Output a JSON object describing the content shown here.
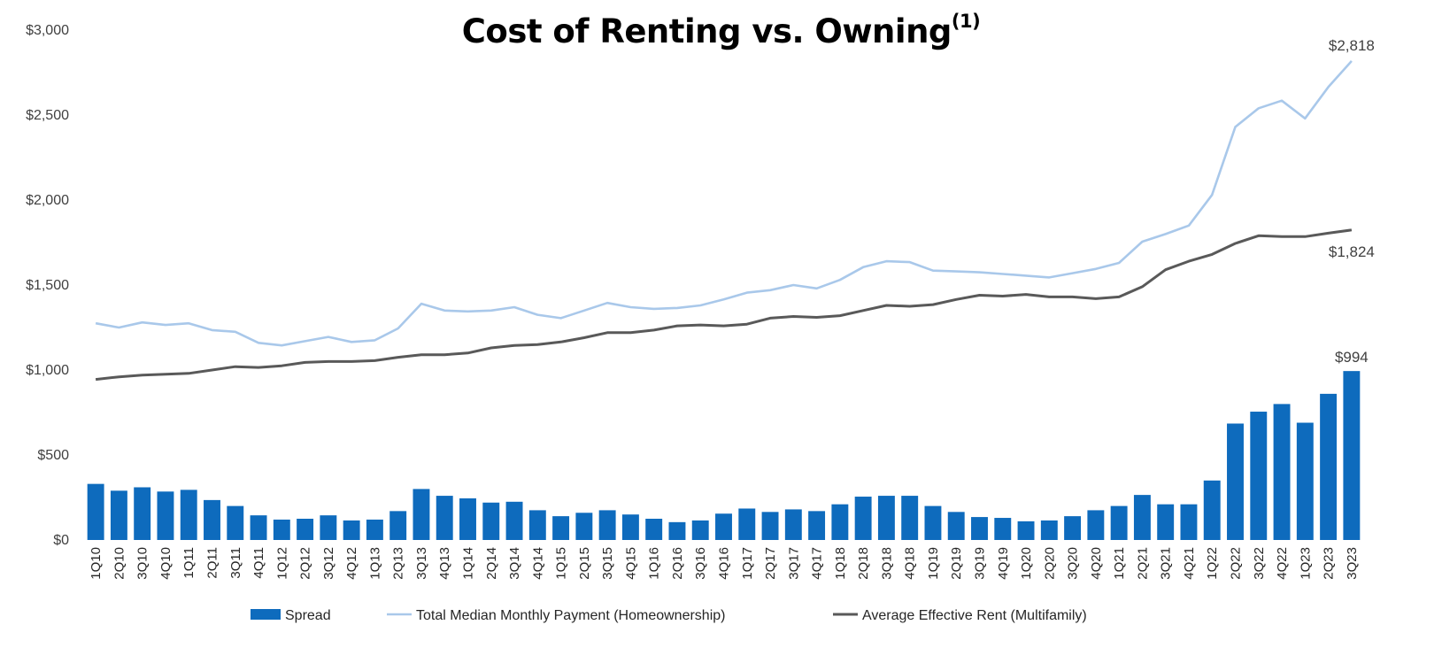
{
  "title": "Cost of Renting vs. Owning",
  "title_superscript": "(1)",
  "chart_data": {
    "type": "bar",
    "categories": [
      "1Q10",
      "2Q10",
      "3Q10",
      "4Q10",
      "1Q11",
      "2Q11",
      "3Q11",
      "4Q11",
      "1Q12",
      "2Q12",
      "3Q12",
      "4Q12",
      "1Q13",
      "2Q13",
      "3Q13",
      "4Q13",
      "1Q14",
      "2Q14",
      "3Q14",
      "4Q14",
      "1Q15",
      "2Q15",
      "3Q15",
      "4Q15",
      "1Q16",
      "2Q16",
      "3Q16",
      "4Q16",
      "1Q17",
      "2Q17",
      "3Q17",
      "4Q17",
      "1Q18",
      "2Q18",
      "3Q18",
      "4Q18",
      "1Q19",
      "2Q19",
      "3Q19",
      "4Q19",
      "1Q20",
      "2Q20",
      "3Q20",
      "4Q20",
      "1Q21",
      "2Q21",
      "3Q21",
      "4Q21",
      "1Q22",
      "2Q22",
      "3Q22",
      "4Q22",
      "1Q23",
      "2Q23",
      "3Q23"
    ],
    "series": [
      {
        "name": "Spread",
        "type": "bar",
        "color": "#0e6bbd",
        "values": [
          330,
          290,
          310,
          285,
          295,
          235,
          200,
          145,
          120,
          125,
          145,
          115,
          120,
          170,
          300,
          260,
          245,
          220,
          225,
          175,
          140,
          160,
          175,
          150,
          125,
          105,
          115,
          155,
          185,
          165,
          180,
          170,
          210,
          255,
          260,
          260,
          200,
          165,
          135,
          130,
          110,
          115,
          140,
          175,
          200,
          265,
          210,
          210,
          350,
          685,
          755,
          800,
          690,
          860,
          994
        ]
      },
      {
        "name": "Total Median Monthly Payment (Homeownership)",
        "type": "line",
        "color": "#a9c8ea",
        "values": [
          1275,
          1250,
          1280,
          1265,
          1275,
          1235,
          1225,
          1160,
          1145,
          1170,
          1195,
          1165,
          1175,
          1245,
          1390,
          1350,
          1345,
          1350,
          1370,
          1325,
          1305,
          1350,
          1395,
          1370,
          1360,
          1365,
          1380,
          1415,
          1455,
          1470,
          1500,
          1480,
          1530,
          1605,
          1640,
          1635,
          1585,
          1580,
          1575,
          1565,
          1555,
          1545,
          1570,
          1595,
          1630,
          1755,
          1800,
          1850,
          2030,
          2430,
          2540,
          2585,
          2480,
          2665,
          2818
        ]
      },
      {
        "name": "Average Effective Rent (Multifamily)",
        "type": "line",
        "color": "#595959",
        "values": [
          945,
          960,
          970,
          975,
          980,
          1000,
          1020,
          1015,
          1025,
          1045,
          1050,
          1050,
          1055,
          1075,
          1090,
          1090,
          1100,
          1130,
          1145,
          1150,
          1165,
          1190,
          1220,
          1220,
          1235,
          1260,
          1265,
          1260,
          1270,
          1305,
          1315,
          1310,
          1320,
          1350,
          1380,
          1375,
          1385,
          1415,
          1440,
          1435,
          1445,
          1430,
          1430,
          1420,
          1430,
          1490,
          1590,
          1640,
          1680,
          1745,
          1790,
          1785,
          1785,
          1805,
          1824
        ]
      }
    ],
    "ylim": [
      0,
      3000
    ],
    "yticks": [
      0,
      500,
      1000,
      1500,
      2000,
      2500,
      3000
    ],
    "ytick_labels": [
      "$0",
      "$500",
      "$1,000",
      "$1,500",
      "$2,000",
      "$2,500",
      "$3,000"
    ],
    "data_labels": [
      {
        "series": "Total Median Monthly Payment (Homeownership)",
        "index": 54,
        "text": "$2,818"
      },
      {
        "series": "Average Effective Rent (Multifamily)",
        "index": 54,
        "text": "$1,824"
      },
      {
        "series": "Spread",
        "index": 54,
        "text": "$994"
      }
    ],
    "legend_position": "bottom",
    "grid": false
  }
}
